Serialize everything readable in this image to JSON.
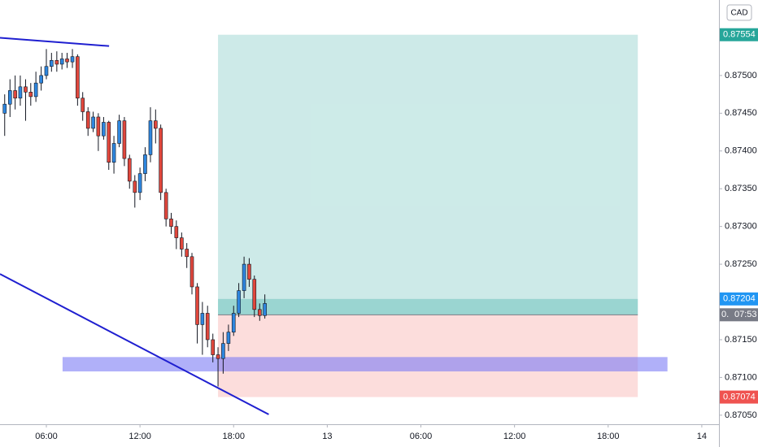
{
  "chart_data": {
    "type": "candlestick",
    "currency": "CAD",
    "x": [
      3.33,
      3.67,
      4,
      4.33,
      4.67,
      5,
      5.33,
      5.67,
      6,
      6.33,
      6.67,
      7,
      7.33,
      7.67,
      8,
      8.33,
      8.67,
      9,
      9.33,
      9.67,
      10,
      10.33,
      10.67,
      11,
      11.33,
      11.67,
      12,
      12.33,
      12.67,
      13,
      13.33,
      13.67,
      14,
      14.33,
      14.67,
      15,
      15.33,
      15.67,
      16,
      16.33,
      16.67,
      17,
      17.33,
      17.67,
      18,
      18.33,
      18.67,
      19,
      19.33,
      19.67,
      20
    ],
    "open": [
      0.8745,
      0.87462,
      0.8748,
      0.8747,
      0.87485,
      0.87478,
      0.87472,
      0.8749,
      0.875,
      0.87512,
      0.8752,
      0.87515,
      0.87522,
      0.87518,
      0.87525,
      0.8747,
      0.87452,
      0.8743,
      0.87445,
      0.8742,
      0.87438,
      0.87385,
      0.8741,
      0.8744,
      0.8739,
      0.8736,
      0.87345,
      0.8737,
      0.87395,
      0.8744,
      0.8743,
      0.87345,
      0.8731,
      0.873,
      0.87285,
      0.8727,
      0.8726,
      0.8722,
      0.8717,
      0.87185,
      0.8715,
      0.8713,
      0.87125,
      0.87145,
      0.8716,
      0.87185,
      0.87215,
      0.8725,
      0.8723,
      0.8719,
      0.87182
    ],
    "high": [
      0.87475,
      0.87495,
      0.875,
      0.875,
      0.87495,
      0.8749,
      0.87505,
      0.87512,
      0.87535,
      0.8753,
      0.87532,
      0.8753,
      0.8753,
      0.87535,
      0.87528,
      0.87478,
      0.87458,
      0.87452,
      0.8745,
      0.87445,
      0.8744,
      0.8742,
      0.87448,
      0.87445,
      0.87395,
      0.87368,
      0.87378,
      0.87405,
      0.87458,
      0.87455,
      0.87435,
      0.8735,
      0.87318,
      0.87308,
      0.87292,
      0.87278,
      0.87265,
      0.87225,
      0.872,
      0.87195,
      0.87158,
      0.8714,
      0.8716,
      0.8717,
      0.87195,
      0.87225,
      0.8726,
      0.87258,
      0.87235,
      0.87198,
      0.8721
    ],
    "low": [
      0.8742,
      0.87445,
      0.87455,
      0.8746,
      0.8744,
      0.8746,
      0.87465,
      0.8748,
      0.87495,
      0.87505,
      0.87505,
      0.87508,
      0.8751,
      0.8751,
      0.8746,
      0.8744,
      0.8742,
      0.87425,
      0.874,
      0.87415,
      0.87375,
      0.8737,
      0.87405,
      0.8738,
      0.8735,
      0.87325,
      0.87335,
      0.8736,
      0.87385,
      0.8741,
      0.87335,
      0.873,
      0.8729,
      0.8727,
      0.8726,
      0.87245,
      0.8721,
      0.87145,
      0.8713,
      0.8714,
      0.8712,
      0.87088,
      0.87105,
      0.87135,
      0.87155,
      0.8718,
      0.87205,
      0.8722,
      0.8718,
      0.87175,
      0.87178
    ],
    "close": [
      0.87462,
      0.8748,
      0.8747,
      0.87485,
      0.87478,
      0.87472,
      0.8749,
      0.875,
      0.87512,
      0.8752,
      0.87515,
      0.87522,
      0.87518,
      0.87525,
      0.8747,
      0.87452,
      0.8743,
      0.87445,
      0.8742,
      0.87438,
      0.87385,
      0.8741,
      0.8744,
      0.8739,
      0.8736,
      0.87345,
      0.8737,
      0.87395,
      0.8744,
      0.8743,
      0.87345,
      0.8731,
      0.873,
      0.87285,
      0.8727,
      0.8726,
      0.8722,
      0.8717,
      0.87185,
      0.8715,
      0.8713,
      0.87125,
      0.87145,
      0.8716,
      0.87185,
      0.87215,
      0.8725,
      0.8723,
      0.8719,
      0.87182,
      0.87198
    ],
    "up_color": "#2e86de",
    "down_color": "#e0473c",
    "xlim": [
      3.03,
      49.1
    ],
    "ylim": [
      0.87038,
      0.876
    ],
    "xticks": [
      {
        "value": 6,
        "label": "06:00"
      },
      {
        "value": 12,
        "label": "12:00"
      },
      {
        "value": 18,
        "label": "18:00"
      },
      {
        "value": 24,
        "label": "13"
      },
      {
        "value": 30,
        "label": "06:00"
      },
      {
        "value": 36,
        "label": "12:00"
      },
      {
        "value": 42,
        "label": "18:00"
      },
      {
        "value": 48,
        "label": "14"
      }
    ],
    "yticks": [
      {
        "value": 0.8705,
        "label": "0.87050"
      },
      {
        "value": 0.871,
        "label": "0.87100"
      },
      {
        "value": 0.8715,
        "label": "0.87150"
      },
      {
        "value": 0.872,
        "label": "0.87200"
      },
      {
        "value": 0.8725,
        "label": "0.87250"
      },
      {
        "value": 0.873,
        "label": "0.87300"
      },
      {
        "value": 0.8735,
        "label": "0.87350"
      },
      {
        "value": 0.874,
        "label": "0.87400"
      },
      {
        "value": 0.8745,
        "label": "0.87450"
      },
      {
        "value": 0.875,
        "label": "0.87500"
      }
    ],
    "position": {
      "x": [
        17.0,
        43.9
      ],
      "entry": 0.87183,
      "target": 0.87554,
      "stop": 0.87074,
      "current": 0.87204,
      "target_color": "#26a69a",
      "stop_color": "#ef5350",
      "current_color": "#2196f3",
      "entry_label": "0.",
      "countdown": "07:53"
    },
    "zone": {
      "x": [
        7.04,
        45.8
      ],
      "y": [
        0.87108,
        0.87127
      ],
      "color": "#7b7bf5"
    },
    "trendlines": [
      {
        "x": [
          3.03,
          10.02
        ],
        "y": [
          0.8755,
          0.87539
        ]
      },
      {
        "x": [
          3.03,
          20.25
        ],
        "y": [
          0.87237,
          0.87051
        ]
      }
    ],
    "trendline_color": "#1f1fd0"
  }
}
